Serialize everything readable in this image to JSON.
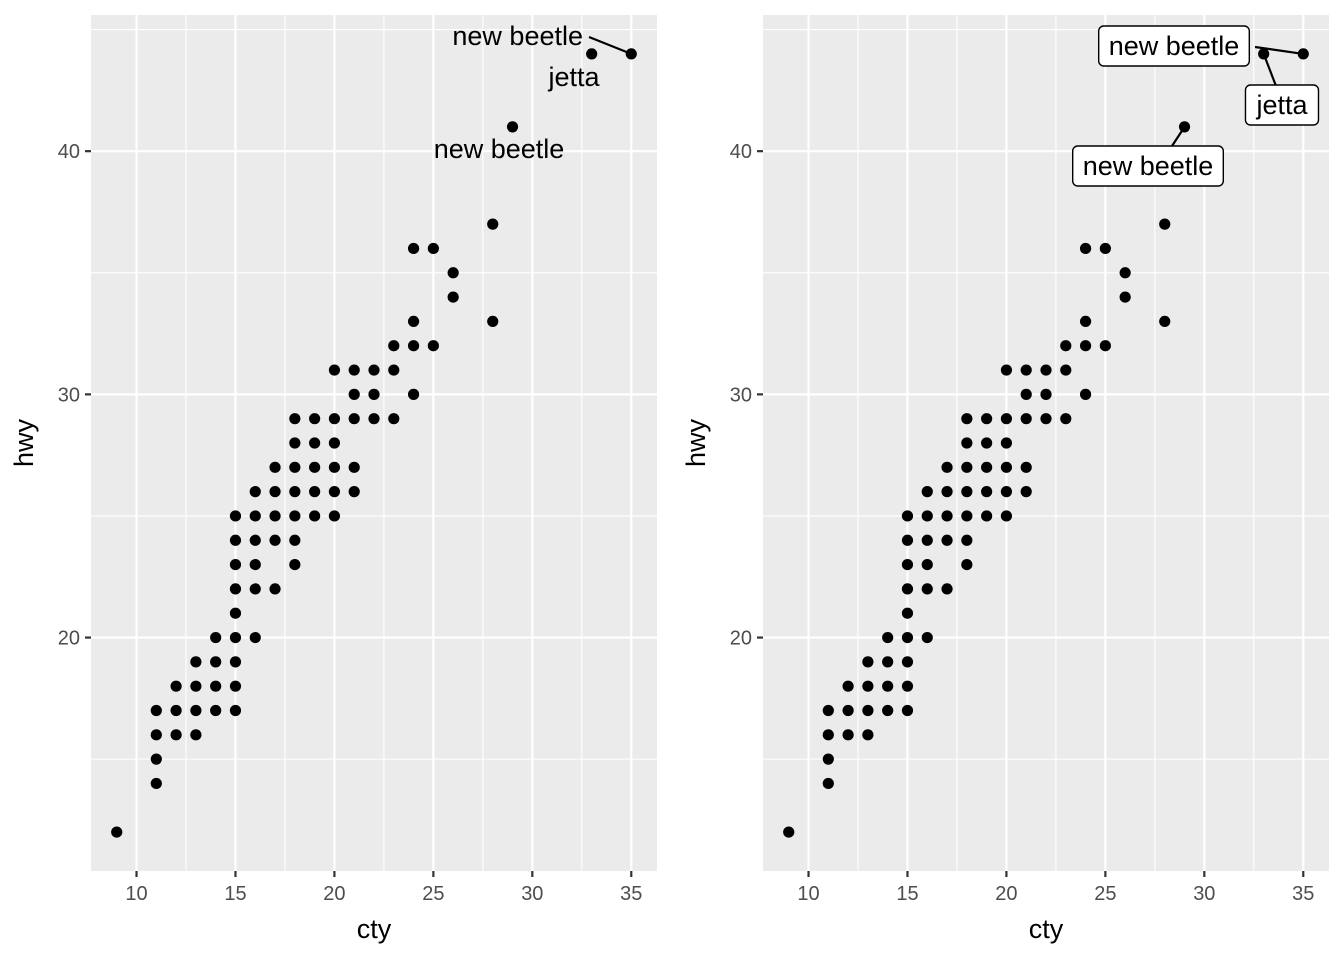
{
  "chart_data": [
    {
      "type": "scatter",
      "title": "",
      "xlabel": "cty",
      "ylabel": "hwy",
      "xlim": [
        7.7,
        36.3
      ],
      "ylim": [
        10.4,
        45.6
      ],
      "xticks": [
        10,
        15,
        20,
        25,
        30,
        35
      ],
      "yticks": [
        20,
        30,
        40
      ],
      "grid": true,
      "legend": "none",
      "label_style": "text",
      "points": [
        [
          9,
          12
        ],
        [
          11,
          14
        ],
        [
          11,
          15
        ],
        [
          11,
          16
        ],
        [
          11,
          17
        ],
        [
          12,
          16
        ],
        [
          12,
          17
        ],
        [
          12,
          18
        ],
        [
          13,
          16
        ],
        [
          13,
          17
        ],
        [
          13,
          18
        ],
        [
          13,
          19
        ],
        [
          14,
          17
        ],
        [
          14,
          18
        ],
        [
          14,
          19
        ],
        [
          14,
          20
        ],
        [
          15,
          17
        ],
        [
          15,
          18
        ],
        [
          15,
          19
        ],
        [
          15,
          20
        ],
        [
          15,
          21
        ],
        [
          15,
          22
        ],
        [
          15,
          23
        ],
        [
          15,
          24
        ],
        [
          15,
          25
        ],
        [
          16,
          20
        ],
        [
          16,
          22
        ],
        [
          16,
          23
        ],
        [
          16,
          24
        ],
        [
          16,
          25
        ],
        [
          16,
          26
        ],
        [
          17,
          22
        ],
        [
          17,
          24
        ],
        [
          17,
          25
        ],
        [
          17,
          26
        ],
        [
          17,
          27
        ],
        [
          18,
          23
        ],
        [
          18,
          24
        ],
        [
          18,
          25
        ],
        [
          18,
          26
        ],
        [
          18,
          27
        ],
        [
          18,
          28
        ],
        [
          18,
          29
        ],
        [
          19,
          25
        ],
        [
          19,
          26
        ],
        [
          19,
          27
        ],
        [
          19,
          28
        ],
        [
          19,
          29
        ],
        [
          20,
          25
        ],
        [
          20,
          26
        ],
        [
          20,
          27
        ],
        [
          20,
          28
        ],
        [
          20,
          29
        ],
        [
          20,
          31
        ],
        [
          21,
          26
        ],
        [
          21,
          27
        ],
        [
          21,
          29
        ],
        [
          21,
          30
        ],
        [
          21,
          31
        ],
        [
          22,
          29
        ],
        [
          22,
          30
        ],
        [
          22,
          31
        ],
        [
          23,
          29
        ],
        [
          23,
          31
        ],
        [
          23,
          32
        ],
        [
          24,
          30
        ],
        [
          24,
          32
        ],
        [
          24,
          33
        ],
        [
          24,
          36
        ],
        [
          25,
          32
        ],
        [
          25,
          36
        ],
        [
          26,
          34
        ],
        [
          26,
          35
        ],
        [
          28,
          33
        ],
        [
          28,
          37
        ],
        [
          29,
          41
        ],
        [
          33,
          44
        ],
        [
          35,
          44
        ]
      ],
      "annotations": [
        {
          "label": "new beetle",
          "x": 35,
          "y": 44
        },
        {
          "label": "jetta",
          "x": 33,
          "y": 44
        },
        {
          "label": "new beetle",
          "x": 29,
          "y": 41
        }
      ]
    },
    {
      "type": "scatter",
      "title": "",
      "xlabel": "cty",
      "ylabel": "hwy",
      "xlim": [
        7.7,
        36.3
      ],
      "ylim": [
        10.4,
        45.6
      ],
      "xticks": [
        10,
        15,
        20,
        25,
        30,
        35
      ],
      "yticks": [
        20,
        30,
        40
      ],
      "grid": true,
      "legend": "none",
      "label_style": "boxed",
      "points": [
        [
          9,
          12
        ],
        [
          11,
          14
        ],
        [
          11,
          15
        ],
        [
          11,
          16
        ],
        [
          11,
          17
        ],
        [
          12,
          16
        ],
        [
          12,
          17
        ],
        [
          12,
          18
        ],
        [
          13,
          16
        ],
        [
          13,
          17
        ],
        [
          13,
          18
        ],
        [
          13,
          19
        ],
        [
          14,
          17
        ],
        [
          14,
          18
        ],
        [
          14,
          19
        ],
        [
          14,
          20
        ],
        [
          15,
          17
        ],
        [
          15,
          18
        ],
        [
          15,
          19
        ],
        [
          15,
          20
        ],
        [
          15,
          21
        ],
        [
          15,
          22
        ],
        [
          15,
          23
        ],
        [
          15,
          24
        ],
        [
          15,
          25
        ],
        [
          16,
          20
        ],
        [
          16,
          22
        ],
        [
          16,
          23
        ],
        [
          16,
          24
        ],
        [
          16,
          25
        ],
        [
          16,
          26
        ],
        [
          17,
          22
        ],
        [
          17,
          24
        ],
        [
          17,
          25
        ],
        [
          17,
          26
        ],
        [
          17,
          27
        ],
        [
          18,
          23
        ],
        [
          18,
          24
        ],
        [
          18,
          25
        ],
        [
          18,
          26
        ],
        [
          18,
          27
        ],
        [
          18,
          28
        ],
        [
          18,
          29
        ],
        [
          19,
          25
        ],
        [
          19,
          26
        ],
        [
          19,
          27
        ],
        [
          19,
          28
        ],
        [
          19,
          29
        ],
        [
          20,
          25
        ],
        [
          20,
          26
        ],
        [
          20,
          27
        ],
        [
          20,
          28
        ],
        [
          20,
          29
        ],
        [
          20,
          31
        ],
        [
          21,
          26
        ],
        [
          21,
          27
        ],
        [
          21,
          29
        ],
        [
          21,
          30
        ],
        [
          21,
          31
        ],
        [
          22,
          29
        ],
        [
          22,
          30
        ],
        [
          22,
          31
        ],
        [
          23,
          29
        ],
        [
          23,
          31
        ],
        [
          23,
          32
        ],
        [
          24,
          30
        ],
        [
          24,
          32
        ],
        [
          24,
          33
        ],
        [
          24,
          36
        ],
        [
          25,
          32
        ],
        [
          25,
          36
        ],
        [
          26,
          34
        ],
        [
          26,
          35
        ],
        [
          28,
          33
        ],
        [
          28,
          37
        ],
        [
          29,
          41
        ],
        [
          33,
          44
        ],
        [
          35,
          44
        ]
      ],
      "annotations": [
        {
          "label": "new beetle",
          "x": 35,
          "y": 44
        },
        {
          "label": "jetta",
          "x": 33,
          "y": 44
        },
        {
          "label": "new beetle",
          "x": 29,
          "y": 41
        }
      ]
    }
  ]
}
